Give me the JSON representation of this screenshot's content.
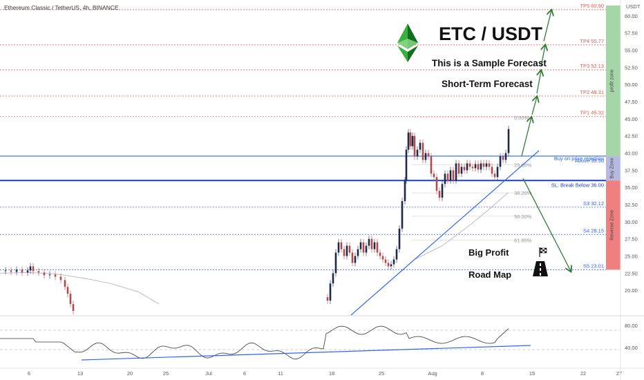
{
  "header": {
    "symbol_line": "Ethereum Classic / TetherUS, 4h, BINANCE"
  },
  "chart_data": {
    "type": "candlestick",
    "title": "ETC / USDT",
    "subtitle_1": "This is a Sample Forecast",
    "subtitle_2": "Short-Term Forecast",
    "road_map_1": "Big Profit",
    "road_map_2": "Road Map",
    "y_unit": "USDT",
    "ylim": [
      16.5,
      61.5
    ],
    "y_ticks": [
      "60.00",
      "57.50",
      "55.00",
      "52.50",
      "50.00",
      "47.50",
      "45.00",
      "42.50",
      "40.00",
      "37.50",
      "35.00",
      "32.50",
      "30.00",
      "27.50",
      "25.00",
      "22.50",
      "20.00"
    ],
    "x_ticks": [
      "6",
      "13",
      "20",
      "25",
      "Jul",
      "6",
      "11",
      "18",
      "25",
      "Aug",
      "8",
      "15",
      "22",
      "27"
    ],
    "levels": [
      {
        "label": "TP5 60.90",
        "value": 60.9,
        "kind": "tp"
      },
      {
        "label": "TP4 55.77",
        "value": 55.77,
        "kind": "tp"
      },
      {
        "label": "TP3 52.13",
        "value": 52.13,
        "kind": "tp"
      },
      {
        "label": "TP2 48.31",
        "value": 48.31,
        "kind": "tp"
      },
      {
        "label": "TP1 45.32",
        "value": 45.32,
        "kind": "tp"
      },
      {
        "label": "Above 39.56",
        "value": 39.56,
        "kind": "entry"
      },
      {
        "label": "SL: Break Below 36.00",
        "value": 36.0,
        "kind": "sl"
      },
      {
        "label": "S3 32.12",
        "value": 32.12,
        "kind": "s"
      },
      {
        "label": "S4 28.15",
        "value": 28.15,
        "kind": "s"
      },
      {
        "label": "S5 23.01",
        "value": 23.01,
        "kind": "s"
      }
    ],
    "entry_note": "Buy on price rejection",
    "fib_levels": [
      {
        "label": "0.00%",
        "value": 45.2
      },
      {
        "label": "23.60%",
        "value": 38.3
      },
      {
        "label": "38.20%",
        "value": 34.2
      },
      {
        "label": "50.00%",
        "value": 30.8
      },
      {
        "label": "61.80%",
        "value": 27.3
      }
    ],
    "zones": [
      {
        "label": "profit zone",
        "from": 39.56,
        "to": 61.5,
        "color": "#a5d6a7"
      },
      {
        "label": "Buy Zone",
        "from": 36.0,
        "to": 39.56,
        "color": "#b7b9e0"
      },
      {
        "label": "Reverse Zone",
        "from": 23.0,
        "to": 36.0,
        "color": "#f08080"
      }
    ],
    "price_series": [
      [
        0,
        22.8
      ],
      [
        8,
        22.9
      ],
      [
        16,
        22.7
      ],
      [
        24,
        23.0
      ],
      [
        32,
        22.6
      ],
      [
        40,
        22.9
      ],
      [
        44,
        23.5
      ],
      [
        48,
        22.8
      ],
      [
        56,
        22.6
      ],
      [
        64,
        22.2
      ],
      [
        72,
        22.3
      ],
      [
        80,
        22.0
      ],
      [
        88,
        21.5
      ],
      [
        94,
        20.5
      ],
      [
        98,
        19.5
      ],
      [
        102,
        18.0
      ],
      [
        106,
        17.0
      ],
      [
        470,
        19.0
      ],
      [
        474,
        18.5
      ],
      [
        478,
        21.0
      ],
      [
        482,
        22.5
      ],
      [
        486,
        25.5
      ],
      [
        490,
        27.0
      ],
      [
        494,
        26.0
      ],
      [
        498,
        25.0
      ],
      [
        502,
        26.5
      ],
      [
        506,
        25.5
      ],
      [
        510,
        24.0
      ],
      [
        514,
        25.0
      ],
      [
        518,
        26.0
      ],
      [
        522,
        27.0
      ],
      [
        526,
        25.5
      ],
      [
        530,
        26.5
      ],
      [
        534,
        27.5
      ],
      [
        538,
        26.0
      ],
      [
        542,
        27.0
      ],
      [
        546,
        25.5
      ],
      [
        550,
        25.0
      ],
      [
        554,
        24.5
      ],
      [
        558,
        24.0
      ],
      [
        562,
        23.5
      ],
      [
        566,
        23.8
      ],
      [
        570,
        24.5
      ],
      [
        574,
        26.0
      ],
      [
        578,
        29.0
      ],
      [
        582,
        33.0
      ],
      [
        586,
        36.0
      ],
      [
        588,
        40.5
      ],
      [
        591,
        43.0
      ],
      [
        594,
        41.0
      ],
      [
        597,
        42.5
      ],
      [
        600,
        39.5
      ],
      [
        604,
        40.5
      ],
      [
        608,
        41.5
      ],
      [
        612,
        39.0
      ],
      [
        616,
        40.0
      ],
      [
        620,
        39.5
      ],
      [
        624,
        37.0
      ],
      [
        628,
        36.5
      ],
      [
        632,
        34.5
      ],
      [
        636,
        33.5
      ],
      [
        640,
        35.5
      ],
      [
        644,
        37.0
      ],
      [
        648,
        36.0
      ],
      [
        652,
        37.5
      ],
      [
        656,
        36.0
      ],
      [
        660,
        38.5
      ],
      [
        664,
        37.0
      ],
      [
        668,
        38.0
      ],
      [
        672,
        37.5
      ],
      [
        676,
        38.5
      ],
      [
        680,
        38.0
      ],
      [
        684,
        37.8
      ],
      [
        688,
        38.4
      ],
      [
        692,
        37.6
      ],
      [
        696,
        38.5
      ],
      [
        700,
        38.0
      ],
      [
        704,
        38.5
      ],
      [
        708,
        38.0
      ],
      [
        712,
        37.0
      ],
      [
        716,
        36.5
      ],
      [
        720,
        38.0
      ],
      [
        724,
        39.5
      ],
      [
        728,
        39.0
      ],
      [
        732,
        40.0
      ],
      [
        736,
        43.5
      ]
    ],
    "forecast_arrows": [
      {
        "from": [
          755,
          39.6
        ],
        "to": [
          769,
          45.2
        ]
      },
      {
        "from": [
          770,
          45.6
        ],
        "to": [
          777,
          48.2
        ]
      },
      {
        "from": [
          777,
          48.7
        ],
        "to": [
          783,
          52.0
        ]
      },
      {
        "from": [
          783,
          52.6
        ],
        "to": [
          789,
          55.7
        ]
      },
      {
        "from": [
          787,
          56.3
        ],
        "to": [
          798,
          60.8
        ]
      },
      {
        "from": [
          757,
          36.3
        ],
        "to": [
          826,
          22.8
        ]
      }
    ],
    "rsi_ticks": [
      "80.00",
      "40.00"
    ]
  },
  "colors": {
    "tp": "#e05a4e",
    "support": "#2962ff",
    "candle_up": "#1e2a4a",
    "candle_down": "#b24a4a",
    "arrow": "#2e7d32",
    "trend": "#2962ff",
    "ma": "#bdbdbd"
  }
}
